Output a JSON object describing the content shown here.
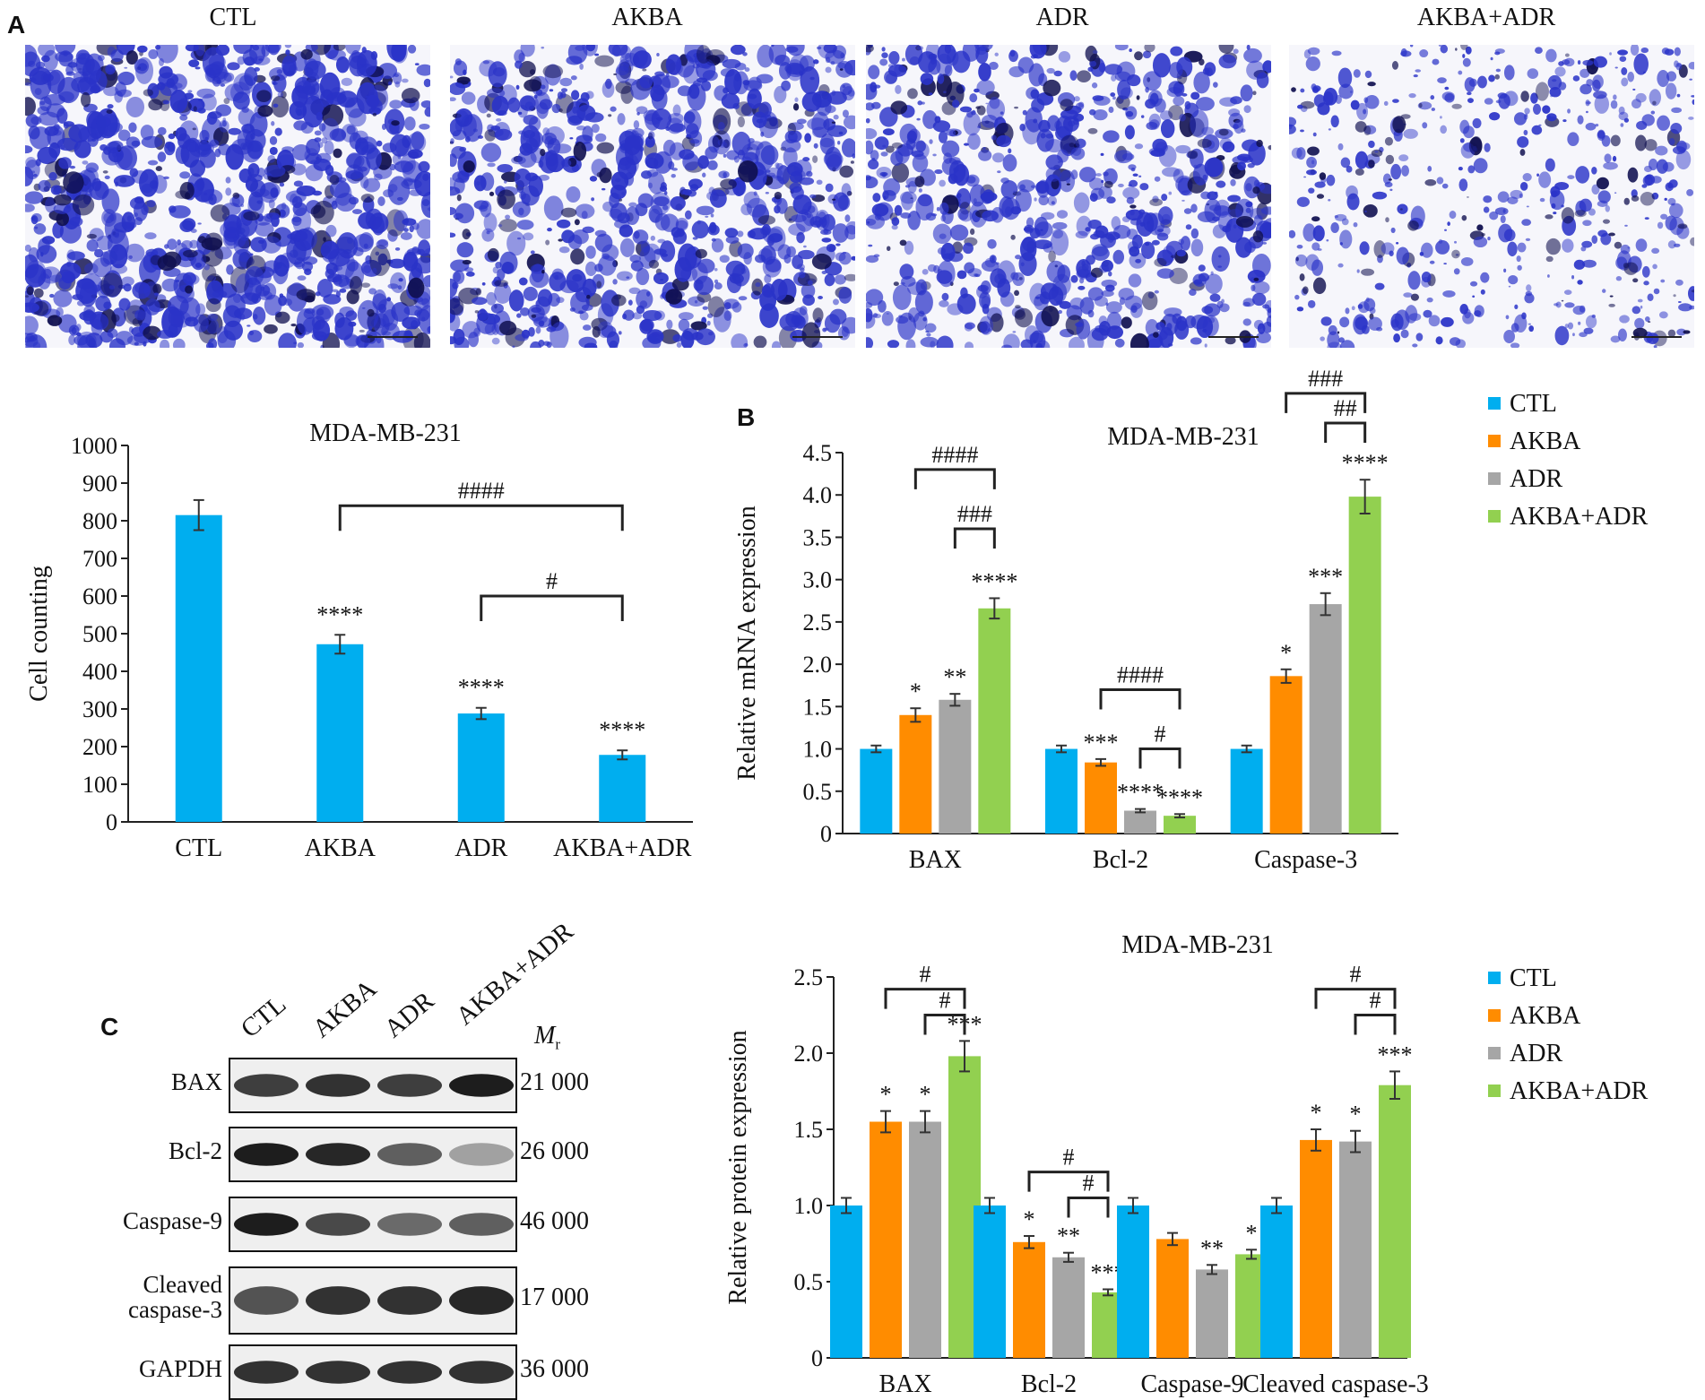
{
  "panel_letters": {
    "a": "A",
    "b": "B",
    "c": "C"
  },
  "microscopy": {
    "titles": [
      "CTL",
      "AKBA",
      "ADR",
      "AKBA+ADR"
    ],
    "stain_color": "#2a33c8",
    "density": [
      0.9,
      0.75,
      0.65,
      0.35
    ]
  },
  "blot": {
    "lanes": [
      "CTL",
      "AKBA",
      "ADR",
      "AKBA+ADR"
    ],
    "mr_label": "M",
    "mr_sub": "r",
    "rows": [
      {
        "name": "BAX",
        "mr": "21 000",
        "intensity": [
          0.8,
          0.85,
          0.8,
          0.95
        ]
      },
      {
        "name": "Bcl-2",
        "mr": "26 000",
        "intensity": [
          0.95,
          0.9,
          0.65,
          0.35
        ]
      },
      {
        "name": "Caspase-9",
        "mr": "46 000",
        "intensity": [
          0.95,
          0.75,
          0.6,
          0.65
        ]
      },
      {
        "name": "Cleaved\ncaspase-3",
        "mr": "17 000",
        "intensity": [
          0.7,
          0.85,
          0.85,
          0.9
        ]
      },
      {
        "name": "GAPDH",
        "mr": "36 000",
        "intensity": [
          0.85,
          0.85,
          0.85,
          0.85
        ]
      }
    ]
  },
  "chart_data": [
    {
      "type": "bar",
      "title": "MDA-MB-231",
      "ylabel": "Cell counting",
      "xlabel": "",
      "categories": [
        "CTL",
        "AKBA",
        "ADR",
        "AKBA+ADR"
      ],
      "values": [
        815,
        472,
        288,
        178
      ],
      "errors": [
        40,
        25,
        15,
        12
      ],
      "value_labels": [
        "",
        "****",
        "****",
        "****"
      ],
      "ylim": [
        0,
        1000
      ],
      "yticks": [
        0,
        100,
        200,
        300,
        400,
        500,
        600,
        700,
        800,
        900,
        1000
      ],
      "color": "#00aeef",
      "brackets": [
        {
          "from": 1,
          "to": 3,
          "y": 840,
          "label": "####"
        },
        {
          "from": 2,
          "to": 3,
          "y": 600,
          "label": "#"
        }
      ]
    },
    {
      "type": "bar",
      "title": "MDA-MB-231",
      "ylabel": "Relative mRNA expression",
      "xlabel": "",
      "categories": [
        "BAX",
        "Bcl-2",
        "Caspase-3"
      ],
      "series": [
        {
          "name": "CTL",
          "color": "#00aeef",
          "values": [
            1.0,
            1.0,
            1.0
          ],
          "errors": [
            0.04,
            0.04,
            0.04
          ],
          "labels": [
            "",
            "",
            ""
          ]
        },
        {
          "name": "AKBA",
          "color": "#ff8c00",
          "values": [
            1.4,
            0.84,
            1.86
          ],
          "errors": [
            0.08,
            0.04,
            0.08
          ],
          "labels": [
            "*",
            "***",
            "*"
          ]
        },
        {
          "name": "ADR",
          "color": "#a6a6a6",
          "values": [
            1.58,
            0.27,
            2.71
          ],
          "errors": [
            0.07,
            0.02,
            0.13
          ],
          "labels": [
            "**",
            "****",
            "***"
          ]
        },
        {
          "name": "AKBA+ADR",
          "color": "#92d050",
          "values": [
            2.66,
            0.21,
            3.98
          ],
          "errors": [
            0.12,
            0.02,
            0.2
          ],
          "labels": [
            "****",
            "****",
            "****"
          ]
        }
      ],
      "ylim": [
        0,
        4.5
      ],
      "yticks": [
        0,
        0.5,
        1.0,
        1.5,
        2.0,
        2.5,
        3.0,
        3.5,
        4.0,
        4.5
      ],
      "ytick_labels": [
        "0",
        "0.5",
        "1.0",
        "1.5",
        "2.0",
        "2.5",
        "3.0",
        "3.5",
        "4.0",
        "4.5"
      ],
      "legend": "right",
      "brackets": [
        {
          "group": 0,
          "from": 1,
          "to": 3,
          "y": 4.3,
          "label": "####"
        },
        {
          "group": 0,
          "from": 2,
          "to": 3,
          "y": 3.6,
          "label": "###"
        },
        {
          "group": 1,
          "from": 1,
          "to": 3,
          "y": 1.7,
          "label": "####"
        },
        {
          "group": 1,
          "from": 2,
          "to": 3,
          "y": 1.0,
          "label": "#"
        },
        {
          "group": 2,
          "from": 1,
          "to": 3,
          "y": 5.2,
          "label": "###"
        },
        {
          "group": 2,
          "from": 2,
          "to": 3,
          "y": 4.85,
          "label": "##"
        }
      ]
    },
    {
      "type": "bar",
      "title": "MDA-MB-231",
      "ylabel": "Relative protein expression",
      "xlabel": "",
      "categories": [
        "BAX",
        "Bcl-2",
        "Caspase-9",
        "Cleaved caspase-3"
      ],
      "series": [
        {
          "name": "CTL",
          "color": "#00aeef",
          "values": [
            1.0,
            1.0,
            1.0,
            1.0
          ],
          "errors": [
            0.05,
            0.05,
            0.05,
            0.05
          ],
          "labels": [
            "",
            "",
            "",
            ""
          ]
        },
        {
          "name": "AKBA",
          "color": "#ff8c00",
          "values": [
            1.55,
            0.76,
            0.78,
            1.43
          ],
          "errors": [
            0.07,
            0.04,
            0.04,
            0.07
          ],
          "labels": [
            "*",
            "*",
            "",
            "*"
          ]
        },
        {
          "name": "ADR",
          "color": "#a6a6a6",
          "values": [
            1.55,
            0.66,
            0.58,
            1.42
          ],
          "errors": [
            0.07,
            0.03,
            0.03,
            0.07
          ],
          "labels": [
            "*",
            "**",
            "**",
            "*"
          ]
        },
        {
          "name": "AKBA+ADR",
          "color": "#92d050",
          "values": [
            1.98,
            0.43,
            0.68,
            1.79
          ],
          "errors": [
            0.1,
            0.02,
            0.03,
            0.09
          ],
          "labels": [
            "***",
            "***",
            "*",
            "***"
          ]
        }
      ],
      "ylim": [
        0,
        2.5
      ],
      "yticks": [
        0,
        0.5,
        1.0,
        1.5,
        2.0,
        2.5
      ],
      "ytick_labels": [
        "0",
        "0.5",
        "1.0",
        "1.5",
        "2.0",
        "2.5"
      ],
      "legend": "right",
      "brackets": [
        {
          "group": 0,
          "from": 1,
          "to": 3,
          "y": 2.42,
          "label": "#"
        },
        {
          "group": 0,
          "from": 2,
          "to": 3,
          "y": 2.25,
          "label": "#"
        },
        {
          "group": 1,
          "from": 1,
          "to": 3,
          "y": 1.22,
          "label": "#"
        },
        {
          "group": 1,
          "from": 2,
          "to": 3,
          "y": 1.05,
          "label": "#"
        },
        {
          "group": 3,
          "from": 1,
          "to": 3,
          "y": 2.42,
          "label": "#"
        },
        {
          "group": 3,
          "from": 2,
          "to": 3,
          "y": 2.25,
          "label": "#"
        }
      ]
    }
  ]
}
